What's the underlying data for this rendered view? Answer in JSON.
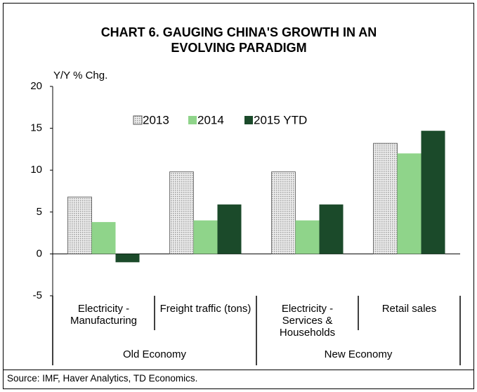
{
  "chart_data": {
    "type": "bar",
    "title": "CHART 6. GAUGING CHINA'S GROWTH IN AN EVOLVING PARADIGM",
    "ylabel": "Y/Y % Chg.",
    "categories": [
      [
        "Electricity -",
        "Manufacturing"
      ],
      [
        "Freight traffic (tons)"
      ],
      [
        "Electricity -",
        "Services &",
        "Households"
      ],
      [
        "Retail sales"
      ]
    ],
    "groups": [
      "Old Economy",
      "New Economy"
    ],
    "series": [
      {
        "name": "2013",
        "color": "#d9d9d9",
        "values": [
          6.8,
          9.8,
          9.8,
          13.2
        ]
      },
      {
        "name": "2014",
        "color": "#8fd48a",
        "values": [
          3.8,
          4.0,
          4.0,
          12.0
        ]
      },
      {
        "name": "2015 YTD",
        "color": "#1b4a2a",
        "values": [
          -1.0,
          5.9,
          5.9,
          14.7
        ]
      }
    ],
    "ylim": [
      -5,
      20
    ],
    "yticks": [
      -5,
      0,
      5,
      10,
      15,
      20
    ],
    "legend": "top",
    "source": "Source: IMF, Haver Analytics, TD Economics."
  }
}
